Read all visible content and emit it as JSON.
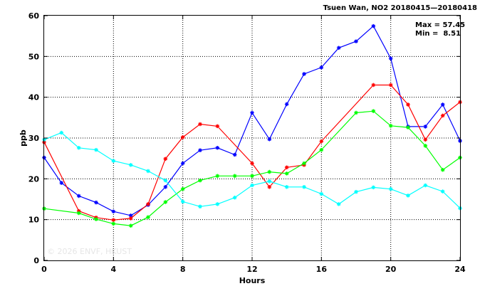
{
  "chart_data": {
    "type": "line",
    "title": "Tsuen Wan, NO2 20180415—20180418",
    "xlabel": "Hours",
    "ylabel": "ppb",
    "xlim": [
      0,
      24
    ],
    "ylim": [
      0,
      60
    ],
    "xticks": [
      0,
      4,
      8,
      12,
      16,
      20,
      24
    ],
    "yticks": [
      0,
      10,
      20,
      30,
      40,
      50,
      60
    ],
    "grid": true,
    "stats": {
      "max": "Max = 57.45",
      "min": "Min =  8.51"
    },
    "watermark": "© 2026 ENVF, HKUST",
    "series": [
      {
        "color": "#0000ff",
        "x": [
          0,
          1,
          2,
          3,
          4,
          5,
          6,
          7,
          8,
          9,
          10,
          11,
          12,
          13,
          14,
          15,
          16,
          17,
          18,
          19,
          20,
          21,
          22,
          23,
          24
        ],
        "values": [
          25.2,
          19.0,
          15.8,
          14.2,
          12.0,
          11.0,
          13.6,
          18.0,
          23.8,
          27.0,
          27.6,
          25.9,
          36.2,
          29.7,
          38.3,
          45.7,
          47.3,
          52.1,
          53.7,
          57.45,
          49.5,
          32.8,
          32.8,
          38.2,
          29.3
        ]
      },
      {
        "color": "#ff0000",
        "x": [
          0,
          2,
          3,
          4,
          5,
          6,
          7,
          8,
          9,
          10,
          12,
          13,
          14,
          15,
          16,
          19,
          20,
          21,
          22,
          23,
          24
        ],
        "values": [
          29.0,
          12.1,
          10.5,
          9.9,
          10.3,
          13.8,
          24.9,
          30.2,
          33.4,
          32.9,
          23.8,
          18.0,
          22.8,
          23.4,
          29.2,
          43.0,
          43.0,
          38.2,
          29.6,
          35.5,
          38.8
        ]
      },
      {
        "color": "#00ff00",
        "x": [
          0,
          2,
          3,
          4,
          5,
          6,
          7,
          8,
          9,
          10,
          11,
          12,
          13,
          14,
          15,
          16,
          18,
          19,
          20,
          21,
          22,
          23,
          24
        ],
        "values": [
          12.7,
          11.6,
          10.1,
          9.0,
          8.51,
          10.6,
          14.3,
          17.5,
          19.6,
          20.7,
          20.7,
          20.7,
          21.7,
          21.3,
          23.8,
          27.1,
          36.2,
          36.6,
          33.0,
          32.6,
          28.1,
          22.2,
          25.2
        ]
      },
      {
        "color": "#00ffff",
        "x": [
          0,
          1,
          2,
          3,
          4,
          5,
          6,
          7,
          8,
          9,
          10,
          11,
          12,
          13,
          14,
          15,
          16,
          17,
          18,
          19,
          20,
          21,
          22,
          23,
          24
        ],
        "values": [
          29.6,
          31.3,
          27.6,
          27.1,
          24.4,
          23.4,
          21.9,
          19.6,
          14.4,
          13.2,
          13.8,
          15.4,
          18.4,
          19.4,
          18.0,
          18.0,
          16.3,
          13.8,
          16.8,
          17.9,
          17.5,
          15.9,
          18.4,
          16.9,
          12.8
        ]
      }
    ]
  }
}
